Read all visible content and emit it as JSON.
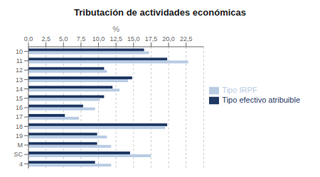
{
  "chart_data": {
    "type": "bar",
    "orientation": "horizontal",
    "title": "Tributación de actividades económicas",
    "xlabel": "%",
    "categories": [
      "10",
      "11",
      "12",
      "13",
      "14",
      "15",
      "16",
      "17",
      "18",
      "19",
      "M",
      "SC",
      "4"
    ],
    "series": [
      {
        "name": "Tipo efectivo atribuible",
        "color": "#1F3864",
        "values": [
          16.5,
          19.8,
          10.8,
          14.8,
          12.0,
          10.8,
          7.8,
          5.2,
          19.8,
          9.8,
          9.8,
          14.5,
          9.5
        ]
      },
      {
        "name": "Tipo IRPF",
        "color": "#B8CCE4",
        "values": [
          17.2,
          22.8,
          11.2,
          14.2,
          13.0,
          10.2,
          9.5,
          7.2,
          19.5,
          11.2,
          11.8,
          17.5,
          11.8
        ]
      }
    ],
    "xlim": [
      0,
      25
    ],
    "xticks": [
      {
        "value": 0.0,
        "label": "0,0"
      },
      {
        "value": 2.5,
        "label": "2,5"
      },
      {
        "value": 5.0,
        "label": "5,0"
      },
      {
        "value": 7.5,
        "label": "7,5"
      },
      {
        "value": 10.0,
        "label": "10,0"
      },
      {
        "value": 12.5,
        "label": "12,5"
      },
      {
        "value": 15.0,
        "label": "15,0"
      },
      {
        "value": 17.5,
        "label": "17,5"
      },
      {
        "value": 20.0,
        "label": "20,0"
      },
      {
        "value": 22.5,
        "label": "22,5"
      }
    ],
    "grid": true,
    "legend": "right"
  }
}
